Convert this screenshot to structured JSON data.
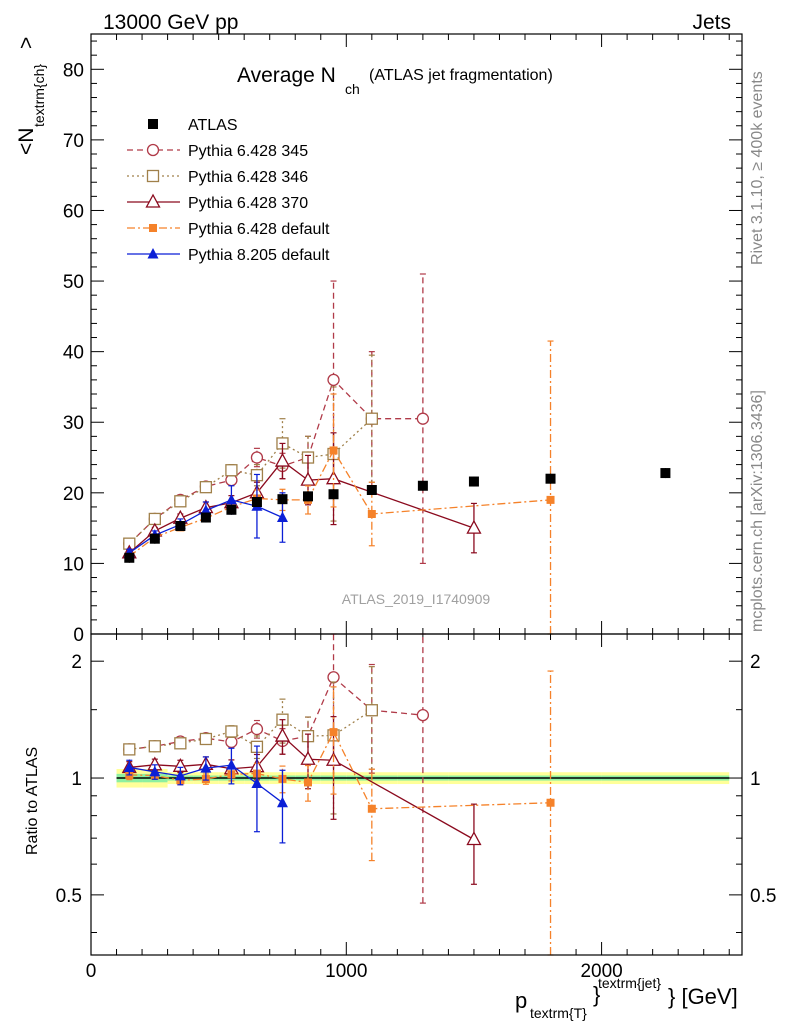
{
  "header": {
    "left": "13000 GeV pp",
    "right": "Jets"
  },
  "side_labels": {
    "rivet": "Rivet 3.1.10, ≥ 400k events",
    "mcplots": "mcplots.cern.ch [arXiv:1306.3436]"
  },
  "chart_data": {
    "type": "scatter",
    "title_main": "Average N",
    "title_sub": "ch",
    "title_note": "(ATLAS jet fragmentation)",
    "ylabel": "<N",
    "ylabel_sub": "textrm{ch}",
    "ylabel_end": ">",
    "xlabel": "p",
    "xlabel_sub": "textrm{T}",
    "xlabel_brace": "}",
    "xlabel_sup": "textrm{jet}",
    "xlabel_end": "} [GeV]",
    "ratio_ylabel": "Ratio to ATLAS",
    "watermark": "ATLAS_2019_I1740909",
    "xlim": [
      0,
      2550
    ],
    "ylim": [
      0,
      85
    ],
    "ratio_ylim": [
      0.35,
      2.35
    ],
    "x_ticks": [
      0,
      1000,
      2000
    ],
    "x_tick_labels": [
      "0",
      "1000",
      "2000"
    ],
    "y_ticks": [
      0,
      10,
      20,
      30,
      40,
      50,
      60,
      70,
      80
    ],
    "y_tick_labels": [
      "0",
      "10",
      "20",
      "30",
      "40",
      "50",
      "60",
      "70",
      "80"
    ],
    "ratio_ticks": [
      0.5,
      1,
      2
    ],
    "ratio_tick_labels": [
      "0.5",
      "1",
      "2"
    ],
    "data": {
      "name": "ATLAS",
      "color": "#000000",
      "x": [
        150,
        250,
        350,
        450,
        550,
        650,
        750,
        850,
        950,
        1100,
        1300,
        1500,
        1800,
        2250
      ],
      "y": [
        10.8,
        13.5,
        15.3,
        16.5,
        17.6,
        18.7,
        19.1,
        19.5,
        19.8,
        20.4,
        21.0,
        21.6,
        22.0,
        22.8
      ],
      "xerr": [
        50,
        50,
        50,
        50,
        50,
        50,
        50,
        50,
        50,
        100,
        100,
        100,
        200,
        250
      ]
    },
    "series": [
      {
        "name": "Pythia 6.428 345",
        "color": "#b03a48",
        "marker": "circle-open",
        "dash": "6,4",
        "x": [
          150,
          250,
          350,
          450,
          550,
          650,
          750,
          850,
          950,
          1100,
          1300
        ],
        "y": [
          12.8,
          16.3,
          19.0,
          20.9,
          21.8,
          25.0,
          23.8,
          25.0,
          36.0,
          30.5,
          30.5
        ],
        "err": [
          0.4,
          0.4,
          0.5,
          0.6,
          0.7,
          1.3,
          1.8,
          3.0,
          14.0,
          9.5,
          20.5
        ]
      },
      {
        "name": "Pythia 6.428 346",
        "color": "#a0804a",
        "marker": "square-open",
        "dash": "2,3",
        "x": [
          150,
          250,
          350,
          450,
          550,
          650,
          750,
          850,
          950,
          1100
        ],
        "y": [
          12.8,
          16.3,
          18.8,
          20.8,
          23.2,
          22.5,
          27.0,
          25.0,
          25.5,
          30.5
        ],
        "err": [
          0.4,
          0.4,
          0.5,
          0.6,
          0.8,
          1.5,
          3.5,
          3.0,
          9.5,
          9.0
        ]
      },
      {
        "name": "Pythia 6.428 370",
        "color": "#8b0a1e",
        "marker": "triangle-open",
        "dash": "",
        "x": [
          150,
          250,
          350,
          450,
          550,
          650,
          750,
          850,
          950,
          1500
        ],
        "y": [
          11.5,
          14.6,
          16.4,
          17.9,
          18.6,
          20.0,
          24.5,
          21.8,
          22.0,
          15.0
        ],
        "err": [
          0.4,
          0.5,
          0.6,
          0.8,
          1.0,
          1.5,
          2.5,
          3.5,
          6.5,
          3.5
        ]
      },
      {
        "name": "Pythia 6.428 default",
        "color": "#f5822a",
        "marker": "square-filled",
        "dash": "8,3,2,3",
        "x": [
          150,
          250,
          350,
          450,
          550,
          650,
          750,
          850,
          950,
          1100,
          1800
        ],
        "y": [
          11.0,
          13.7,
          15.1,
          16.4,
          18.0,
          19.2,
          19.0,
          19.0,
          26.0,
          17.0,
          19.0
        ],
        "err": [
          0.3,
          0.3,
          0.4,
          0.5,
          0.7,
          1.2,
          1.5,
          2.0,
          8.0,
          4.5,
          22.5
        ]
      },
      {
        "name": "Pythia 8.205 default",
        "color": "#0b1fd6",
        "marker": "triangle-filled",
        "dash": "",
        "x": [
          150,
          250,
          350,
          450,
          550,
          650,
          750
        ],
        "y": [
          11.5,
          14.0,
          15.5,
          17.5,
          19.0,
          18.1,
          16.5
        ],
        "err": [
          0.5,
          0.6,
          0.8,
          1.2,
          2.0,
          4.5,
          3.5
        ]
      }
    ],
    "legend_position": "top-left"
  }
}
